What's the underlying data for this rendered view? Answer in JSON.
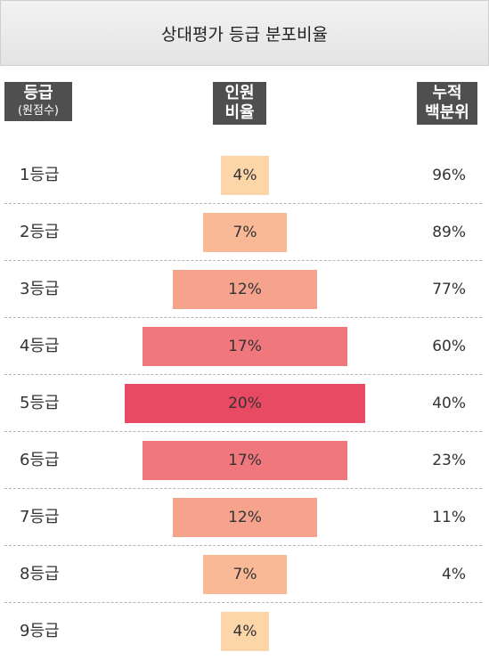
{
  "title": "상대평가 등급 분포비율",
  "headers": {
    "grade": "등급",
    "grade_sub": "(원점수)",
    "ratio_line1": "인원",
    "ratio_line2": "비율",
    "cum_line1": "누적",
    "cum_line2": "백분위"
  },
  "chart_data": {
    "type": "bar",
    "orientation": "horizontal-centered",
    "categories": [
      "1등급",
      "2등급",
      "3등급",
      "4등급",
      "5등급",
      "6등급",
      "7등급",
      "8등급",
      "9등급"
    ],
    "values": [
      4,
      7,
      12,
      17,
      20,
      17,
      12,
      7,
      4
    ],
    "value_labels": [
      "4%",
      "7%",
      "12%",
      "17%",
      "20%",
      "17%",
      "12%",
      "7%",
      "4%"
    ],
    "cumulative_labels": [
      "96%",
      "89%",
      "77%",
      "60%",
      "40%",
      "23%",
      "11%",
      "4%",
      ""
    ],
    "max_value": 20,
    "colors": [
      "#fcd5a8",
      "#f9b996",
      "#f5a38d",
      "#f0787d",
      "#e84a64",
      "#f0787d",
      "#f5a38d",
      "#f9b996",
      "#fcd5a8"
    ]
  }
}
